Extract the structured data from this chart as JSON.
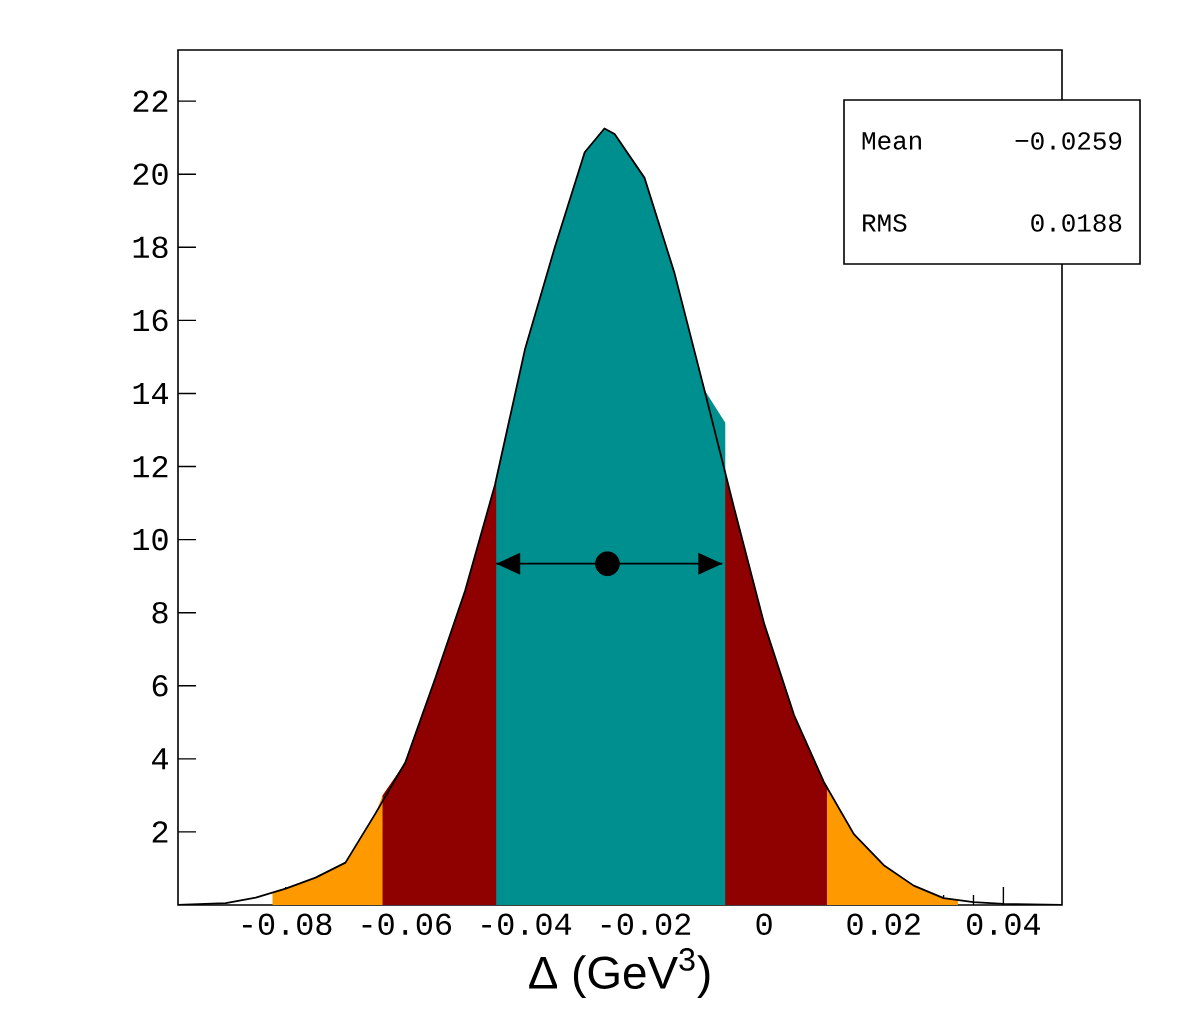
{
  "chart_data": {
    "type": "area",
    "xlabel": "Δ (GeV$^{3}$)",
    "xlim": [
      -0.098,
      0.0498
    ],
    "ylim": [
      0,
      23.4
    ],
    "xticks": [
      -0.08,
      -0.06,
      -0.04,
      -0.02,
      0,
      0.02,
      0.04
    ],
    "yticks": [
      2,
      4,
      6,
      8,
      10,
      12,
      14,
      16,
      18,
      20,
      22
    ],
    "grid": false,
    "annotations": [
      "Mean",
      "−0.0259",
      "RMS",
      "0.0188"
    ],
    "series": [
      {
        "color": "#ff9900",
        "x": [
          -0.0822,
          -0.08,
          -0.075,
          -0.07,
          -0.065,
          -0.0638,
          -0.06,
          -0.055,
          -0.05,
          -0.045,
          -0.04,
          -0.035,
          -0.03,
          -0.0267,
          -0.025,
          -0.02,
          -0.015,
          -0.01,
          -0.005,
          0,
          0.005,
          0.01,
          0.015,
          0.02,
          0.025,
          0.03,
          0.0324
        ],
        "values": [
          0.35,
          0.45,
          0.75,
          1.16,
          2.5,
          3.0,
          3.9,
          6.2,
          8.6,
          11.5,
          15.2,
          18.0,
          20.6,
          21.25,
          21.1,
          19.9,
          17.3,
          14.1,
          10.85,
          7.7,
          5.2,
          3.36,
          1.94,
          1.09,
          0.53,
          0.19,
          0.13
        ]
      },
      {
        "color": "#8f0000",
        "x": [
          -0.0638,
          -0.06,
          -0.055,
          -0.05,
          -0.045,
          -0.04,
          -0.035,
          -0.03,
          -0.0267,
          -0.025,
          -0.02,
          -0.015,
          -0.01,
          -0.005,
          0,
          0.005,
          0.01,
          0.0105
        ],
        "values": [
          3.0,
          3.9,
          6.2,
          8.6,
          11.5,
          15.2,
          18.0,
          20.6,
          21.25,
          21.1,
          19.9,
          17.3,
          14.1,
          10.85,
          7.7,
          5.2,
          3.36,
          3.2
        ]
      },
      {
        "color": "#008f8f",
        "x": [
          -0.0448,
          -0.04,
          -0.035,
          -0.03,
          -0.0267,
          -0.025,
          -0.02,
          -0.015,
          -0.01,
          -0.0065
        ],
        "values": [
          11.7,
          15.2,
          18.0,
          20.6,
          21.25,
          21.1,
          19.9,
          17.3,
          14.1,
          13.2
        ]
      },
      {
        "type": "line",
        "color": "#000000",
        "x": [
          -0.098,
          -0.09,
          -0.085,
          -0.08,
          -0.075,
          -0.07,
          -0.065,
          -0.06,
          -0.055,
          -0.05,
          -0.045,
          -0.04,
          -0.035,
          -0.03,
          -0.0267,
          -0.025,
          -0.02,
          -0.015,
          -0.01,
          -0.005,
          0,
          0.005,
          0.01,
          0.015,
          0.02,
          0.025,
          0.03,
          0.035,
          0.04,
          0.0498
        ],
        "values": [
          0.0,
          0.05,
          0.2,
          0.45,
          0.75,
          1.16,
          2.5,
          3.9,
          6.2,
          8.6,
          11.5,
          15.2,
          18.0,
          20.6,
          21.25,
          21.1,
          19.9,
          17.3,
          14.1,
          10.85,
          7.7,
          5.2,
          3.36,
          1.94,
          1.09,
          0.53,
          0.19,
          0.08,
          0.03,
          0.0
        ]
      },
      {
        "type": "scatter",
        "color": "#000000",
        "x": [
          -0.0262
        ],
        "values": [
          9.34
        ],
        "xerrors": [
          [
            -0.0448,
            -0.007
          ]
        ]
      }
    ]
  }
}
